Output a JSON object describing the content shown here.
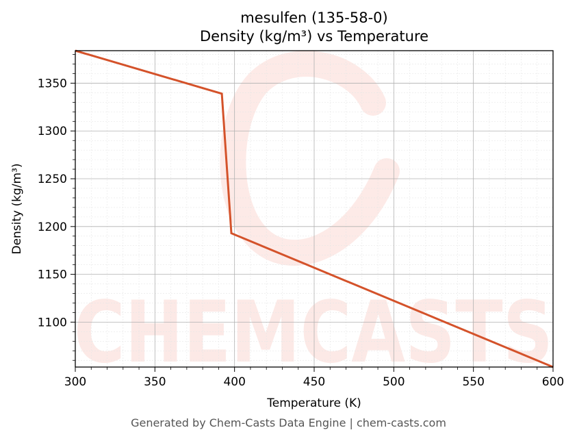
{
  "chart_data": {
    "type": "line",
    "title": "mesulfen (135-58-0)",
    "subtitle": "Density (kg/m³) vs Temperature",
    "xlabel": "Temperature (K)",
    "ylabel": "Density (kg/m³)",
    "xlim": [
      300,
      600
    ],
    "ylim": [
      1053,
      1384
    ],
    "x_ticks": [
      300,
      350,
      400,
      450,
      500,
      550,
      600
    ],
    "y_ticks": [
      1100,
      1150,
      1200,
      1250,
      1300,
      1350
    ],
    "grid": true,
    "series": [
      {
        "color": "#d4522a",
        "x": [
          300,
          392,
          398,
          600
        ],
        "y": [
          1384,
          1339,
          1193,
          1053
        ]
      }
    ]
  },
  "watermark": "CHEMCASTS",
  "footer": "Generated by Chem-Casts Data Engine | chem-casts.com"
}
